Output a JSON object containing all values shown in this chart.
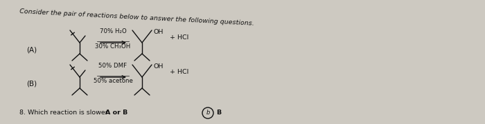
{
  "bg_color": "#cdc9c1",
  "title": "Consider the pair of reactions below to answer the following questions.",
  "title_fontsize": 6.8,
  "label_A": "(A)",
  "label_B": "(B)",
  "reagent_A_line1": "70% H₂O",
  "reagent_A_line2": "30% CH₃OH",
  "reagent_B_line1": "50% DMF",
  "reagent_B_line2": "50% acetone",
  "product_OH": "OH",
  "product_HCl": "+ HCl",
  "question_plain": "8. Which reaction is slower ",
  "question_bold": "A or B",
  "circle_letter": "b",
  "answer_letter": "B",
  "text_color": "#111111",
  "fontsize_main": 6.8,
  "fontsize_labels": 7.5,
  "fontsize_reagent": 6.2,
  "mol_lw": 1.0
}
